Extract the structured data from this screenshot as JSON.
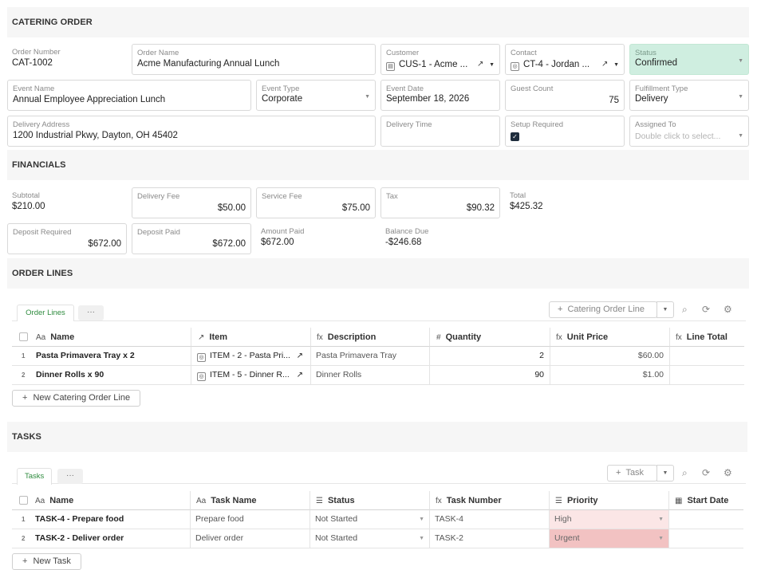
{
  "catering_order": {
    "section_title": "CATERING ORDER",
    "order_number": {
      "label": "Order Number",
      "value": "CAT-1002"
    },
    "order_name": {
      "label": "Order Name",
      "value": "Acme Manufacturing Annual Lunch"
    },
    "customer": {
      "label": "Customer",
      "value": "CUS-1 - Acme ..."
    },
    "contact": {
      "label": "Contact",
      "value": "CT-4 - Jordan ..."
    },
    "status": {
      "label": "Status",
      "value": "Confirmed"
    },
    "event_name": {
      "label": "Event Name",
      "value": "Annual Employee Appreciation Lunch"
    },
    "event_type": {
      "label": "Event Type",
      "value": "Corporate"
    },
    "event_date": {
      "label": "Event Date",
      "value": "September 18, 2026"
    },
    "guest_count": {
      "label": "Guest Count",
      "value": "75"
    },
    "fulfillment_type": {
      "label": "Fulfillment Type",
      "value": "Delivery"
    },
    "delivery_address": {
      "label": "Delivery Address",
      "value": "1200 Industrial Pkwy, Dayton, OH 45402"
    },
    "delivery_time": {
      "label": "Delivery Time",
      "value": ""
    },
    "setup_required": {
      "label": "Setup Required",
      "checked": true
    },
    "assigned_to": {
      "label": "Assigned To",
      "placeholder": "Double click to select..."
    }
  },
  "financials": {
    "section_title": "FINANCIALS",
    "subtotal": {
      "label": "Subtotal",
      "value": "$210.00"
    },
    "delivery_fee": {
      "label": "Delivery Fee",
      "value": "$50.00"
    },
    "service_fee": {
      "label": "Service Fee",
      "value": "$75.00"
    },
    "tax": {
      "label": "Tax",
      "value": "$90.32"
    },
    "total": {
      "label": "Total",
      "value": "$425.32"
    },
    "deposit_required": {
      "label": "Deposit Required",
      "value": "$672.00"
    },
    "deposit_paid": {
      "label": "Deposit Paid",
      "value": "$672.00"
    },
    "amount_paid": {
      "label": "Amount Paid",
      "value": "$672.00"
    },
    "balance_due": {
      "label": "Balance Due",
      "value": "-$246.68"
    }
  },
  "order_lines": {
    "section_title": "ORDER LINES",
    "tab_label": "Order Lines",
    "more_label": "···",
    "add_button": "Catering Order Line",
    "new_button": "New Catering Order Line",
    "columns": [
      "Name",
      "Item",
      "Description",
      "Quantity",
      "Unit Price",
      "Line Total"
    ],
    "column_icons": [
      "Aa",
      "↗",
      "fx",
      "#",
      "fx",
      "fx"
    ],
    "rows": [
      {
        "num": "1",
        "name": "Pasta Primavera Tray x 2",
        "item": "ITEM - 2 - Pasta Pri...",
        "description": "Pasta Primavera Tray",
        "quantity": "2",
        "unit_price": "$60.00",
        "line_total": ""
      },
      {
        "num": "2",
        "name": "Dinner Rolls x 90",
        "item": "ITEM - 5 - Dinner R...",
        "description": "Dinner Rolls",
        "quantity": "90",
        "unit_price": "$1.00",
        "line_total": ""
      }
    ]
  },
  "tasks": {
    "section_title": "TASKS",
    "tab_label": "Tasks",
    "more_label": "···",
    "add_button": "Task",
    "new_button": "New Task",
    "columns": [
      "Name",
      "Task Name",
      "Status",
      "Task Number",
      "Priority",
      "Start Date"
    ],
    "column_icons": [
      "Aa",
      "Aa",
      "☰",
      "fx",
      "☰",
      "▦"
    ],
    "rows": [
      {
        "num": "1",
        "name": "TASK-4 - Prepare food",
        "task_name": "Prepare food",
        "status": "Not Started",
        "task_number": "TASK-4",
        "priority": "High",
        "priority_color": "#fbe6e6",
        "start_date": ""
      },
      {
        "num": "2",
        "name": "TASK-2 - Deliver order",
        "task_name": "Deliver order",
        "status": "Not Started",
        "task_number": "TASK-2",
        "priority": "Urgent",
        "priority_color": "#f2c2c2",
        "start_date": ""
      }
    ]
  },
  "colors": {
    "status_bg": "#cfeee0",
    "tab_green": "#2e8b3e",
    "section_bg": "#f6f6f6"
  }
}
